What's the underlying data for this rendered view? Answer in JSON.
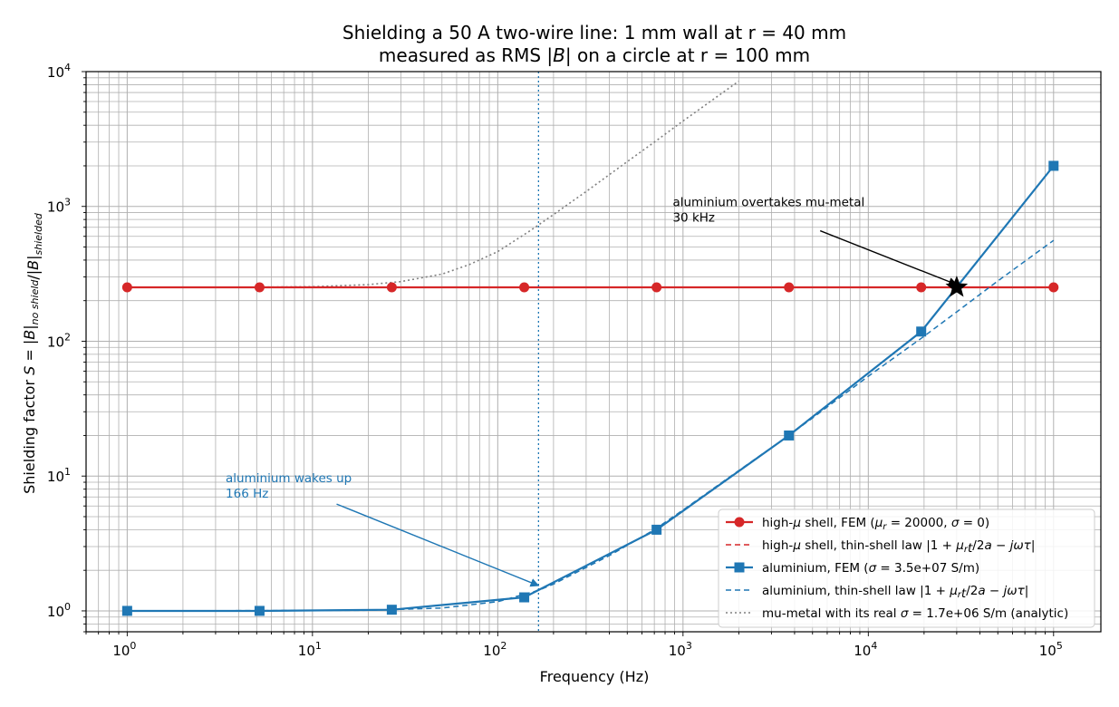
{
  "chart_data": {
    "type": "line",
    "title_line1": "Shielding a 50 A two-wire line: 1 mm wall at r = 40 mm",
    "title_line2": "measured as RMS |B| on a circle at r = 100 mm",
    "xlabel": "Frequency (Hz)",
    "ylabel": "Shielding factor S = |B|no shield/|B|shielded",
    "x_scale": "log",
    "y_scale": "log",
    "xlim": [
      0.6,
      180000
    ],
    "ylim": [
      0.7,
      10000
    ],
    "x_ticks": [
      {
        "value": 1,
        "base": "10",
        "exp": "0"
      },
      {
        "value": 10,
        "base": "10",
        "exp": "1"
      },
      {
        "value": 100,
        "base": "10",
        "exp": "2"
      },
      {
        "value": 1000,
        "base": "10",
        "exp": "3"
      },
      {
        "value": 10000,
        "base": "10",
        "exp": "4"
      },
      {
        "value": 100000,
        "base": "10",
        "exp": "5"
      }
    ],
    "y_ticks": [
      {
        "value": 1,
        "base": "10",
        "exp": "0"
      },
      {
        "value": 10,
        "base": "10",
        "exp": "1"
      },
      {
        "value": 100,
        "base": "10",
        "exp": "2"
      },
      {
        "value": 1000,
        "base": "10",
        "exp": "3"
      },
      {
        "value": 10000,
        "base": "10",
        "exp": "4"
      }
    ],
    "grid": "major and minor",
    "legend_position": "lower-right",
    "series": [
      {
        "name": "high-μ shell, FEM (μr = 20000, σ = 0)",
        "style": "solid-circle",
        "color": "#d62728",
        "x": [
          1,
          5.18,
          26.8,
          139,
          720,
          3730,
          19300,
          100000
        ],
        "y": [
          251,
          251,
          251,
          251,
          251,
          251,
          251,
          251
        ]
      },
      {
        "name": "high-μ shell, thin-shell law |1 + μrt/2a − jωτ|",
        "style": "dashed",
        "color": "#d62728",
        "x": [
          1,
          100000
        ],
        "y": [
          251,
          251
        ]
      },
      {
        "name": "aluminium, FEM (σ = 3.5e+07 S/m)",
        "style": "solid-square",
        "color": "#1f77b4",
        "x": [
          1,
          5.18,
          26.8,
          139,
          720,
          3730,
          19300,
          100000
        ],
        "y": [
          1.0,
          1.0,
          1.02,
          1.26,
          4.0,
          20.0,
          118,
          2000
        ]
      },
      {
        "name": "aluminium, thin-shell law |1 + μrt/2a − jωτ|",
        "style": "dashed",
        "color": "#1f77b4",
        "x": [
          1,
          20,
          50,
          100,
          166,
          200,
          400,
          700,
          1000,
          2000,
          3730,
          5000,
          10000,
          19300,
          30000,
          50000,
          100000
        ],
        "y": [
          1.0,
          1.01,
          1.05,
          1.17,
          1.42,
          1.58,
          2.57,
          4.0,
          5.6,
          11.0,
          20.0,
          27.0,
          55.0,
          105,
          165,
          280,
          560
        ]
      },
      {
        "name": "mu-metal with its real σ = 1.7e+06 S/m (analytic)",
        "style": "dotted",
        "color": "#7f7f7f",
        "x": [
          1,
          5,
          10,
          20,
          30,
          50,
          70,
          100,
          150,
          200,
          300,
          500,
          700,
          1000,
          1500,
          2000
        ],
        "y": [
          251,
          252,
          254,
          263,
          277,
          315,
          370,
          462,
          662,
          870,
          1290,
          2150,
          3000,
          4300,
          6400,
          8500
        ]
      }
    ],
    "vline": {
      "x": 166,
      "color": "#1f77b4"
    },
    "annotations": [
      {
        "id": "crossover",
        "line1": "aluminium overtakes mu-metal",
        "line2": "30 kHz",
        "text_x": 880,
        "text_y": 1000,
        "arrow_from_x": 5500,
        "arrow_from_y": 660,
        "point_x": 30000,
        "point_y": 251,
        "color": "#000000"
      },
      {
        "id": "wakeup",
        "line1": "aluminium wakes up",
        "line2": "166 Hz",
        "text_x": 3.4,
        "text_y": 9.0,
        "arrow_from_x": 13.5,
        "arrow_from_y": 6.2,
        "point_x": 166,
        "point_y": 1.47,
        "color": "#1f77b4"
      }
    ]
  }
}
